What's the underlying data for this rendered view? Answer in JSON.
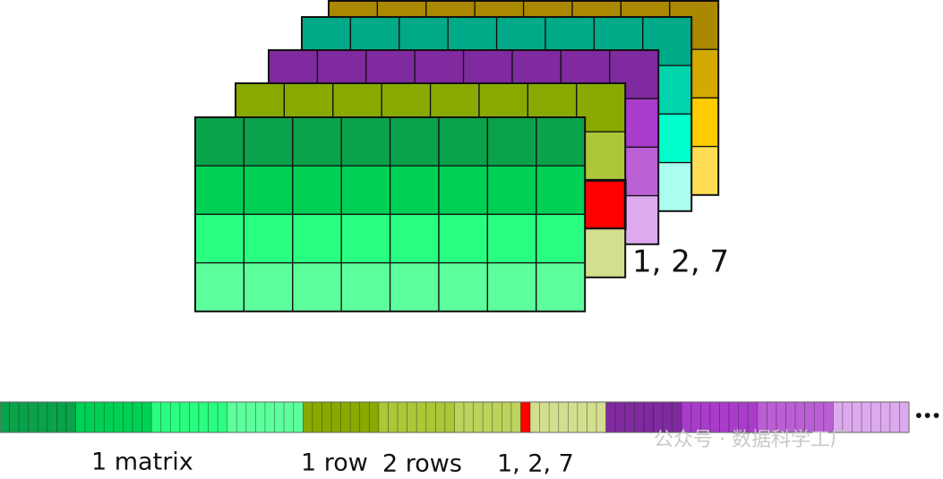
{
  "diagram": {
    "index_label": "1, 2, 7",
    "ellipsis": "•••",
    "strip_labels": [
      "1 matrix",
      "1 row",
      "2 rows",
      "1, 2, 7"
    ],
    "watermark": "公众号 · 数据科学工厂"
  }
}
